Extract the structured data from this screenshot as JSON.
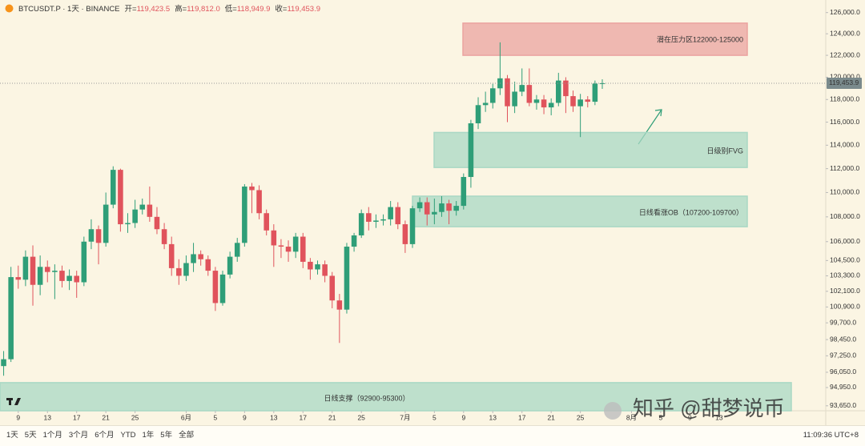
{
  "header": {
    "symbol": "BTCUSDT.P · 1天 · BINANCE",
    "ohlc": [
      {
        "key": "开=",
        "value": "119,423.5"
      },
      {
        "key": "高=",
        "value": "119,812.0"
      },
      {
        "key": "低=",
        "value": "118,949.9"
      },
      {
        "key": "收=",
        "value": "119,453.9"
      }
    ]
  },
  "toolbar": {
    "periods": [
      "1天",
      "5天",
      "1个月",
      "3个月",
      "6个月",
      "YTD",
      "1年",
      "5年",
      "全部"
    ],
    "time": "11:09:36 UTC+8"
  },
  "watermark": "知乎 @甜梦说币",
  "chart_data": {
    "type": "candlestick",
    "categories": [
      null,
      null,
      "9",
      null,
      null,
      null,
      "13",
      null,
      null,
      null,
      "17",
      null,
      null,
      null,
      "21",
      null,
      null,
      null,
      "25",
      null,
      null,
      null,
      null,
      null,
      null,
      "6月",
      null,
      null,
      null,
      "5",
      null,
      null,
      null,
      "9",
      null,
      null,
      null,
      "13",
      null,
      null,
      null,
      "17",
      null,
      null,
      null,
      "21",
      null,
      null,
      null,
      "25",
      null,
      null,
      null,
      null,
      null,
      "7月",
      null,
      null,
      null,
      "5",
      null,
      null,
      null,
      "9",
      null,
      null,
      null,
      "13",
      null,
      null,
      null,
      "17",
      null,
      null,
      null,
      "21",
      null,
      null,
      null,
      "25",
      null,
      null,
      null,
      null,
      null,
      null,
      "8月",
      null,
      null,
      null,
      "5",
      null,
      null,
      null,
      "9",
      null,
      null,
      null,
      "13",
      null,
      null,
      null,
      null,
      null,
      null,
      null,
      null,
      null,
      null,
      null,
      null,
      null,
      null
    ],
    "open": [
      96500,
      97000,
      103200,
      103000,
      104800,
      102600,
      104000,
      103600,
      103700,
      102900,
      103300,
      102800,
      106000,
      107000,
      105900,
      109000,
      111900,
      107400,
      107500,
      108600,
      109000,
      108000,
      107000,
      105800,
      103900,
      103300,
      104300,
      105000,
      104600,
      103700,
      101200,
      103400,
      104800,
      105900,
      110500,
      110200,
      108300,
      106900,
      105700,
      105600,
      105200,
      106400,
      104400,
      103800,
      104200,
      103300,
      101400,
      100700,
      105600,
      106500,
      108300,
      107600,
      107700,
      107800,
      108800,
      107400,
      105800,
      108700,
      109200,
      108200,
      108400,
      109100,
      108500,
      108900,
      111300,
      115900,
      117500,
      117700,
      119000,
      119900,
      117400,
      118700,
      119300,
      117700,
      118000,
      117300,
      117700,
      119700,
      118300,
      117400,
      118000,
      117800,
      119423.5,
      null,
      null,
      null,
      null,
      null,
      null,
      null,
      null,
      null,
      null,
      null,
      null,
      null,
      null,
      null,
      null,
      null,
      null,
      null,
      null,
      null,
      null,
      null,
      null,
      null,
      null,
      null,
      null,
      null,
      null
    ],
    "high": [
      97600,
      104000,
      104100,
      105300,
      105700,
      104900,
      104500,
      104200,
      104100,
      103800,
      103700,
      106400,
      107800,
      107300,
      110000,
      112200,
      112000,
      108300,
      109400,
      109500,
      110500,
      108800,
      107500,
      106400,
      104600,
      104900,
      105900,
      105300,
      104900,
      104000,
      103700,
      105200,
      106300,
      110700,
      110800,
      110600,
      108600,
      107400,
      106200,
      106100,
      106700,
      106700,
      104700,
      104500,
      104500,
      103600,
      101900,
      105900,
      106700,
      108600,
      108800,
      108200,
      108200,
      109300,
      109200,
      107700,
      108900,
      109600,
      109600,
      109500,
      109700,
      109400,
      109300,
      111600,
      116200,
      118200,
      118700,
      119400,
      123200,
      120200,
      119600,
      120800,
      120800,
      118400,
      118400,
      118100,
      120400,
      120000,
      118800,
      118500,
      118300,
      119700,
      119812,
      null,
      null,
      null,
      null,
      null,
      null,
      null,
      null,
      null,
      null,
      null,
      null,
      null,
      null,
      null,
      null,
      null,
      null,
      null,
      null,
      null,
      null,
      null,
      null,
      null,
      null,
      null,
      null,
      null,
      null
    ],
    "low": [
      95800,
      96800,
      102300,
      102500,
      101000,
      101800,
      102800,
      101500,
      102400,
      102200,
      101600,
      102500,
      105400,
      104200,
      105600,
      108700,
      106800,
      106700,
      107100,
      108200,
      107600,
      106600,
      105400,
      103300,
      102600,
      102900,
      103600,
      104100,
      103300,
      100600,
      101000,
      103100,
      104400,
      105600,
      108300,
      107800,
      106500,
      104000,
      104700,
      104400,
      104700,
      103900,
      103000,
      103400,
      102800,
      100800,
      98200,
      100400,
      105200,
      106300,
      106900,
      107100,
      107300,
      107300,
      107000,
      105100,
      105500,
      108400,
      107300,
      107400,
      108000,
      107400,
      108100,
      108600,
      110400,
      115400,
      116900,
      117200,
      118400,
      116000,
      116800,
      118300,
      117400,
      117100,
      116700,
      116600,
      117400,
      116800,
      116900,
      114700,
      117300,
      117500,
      118949.9,
      null,
      null,
      null,
      null,
      null,
      null,
      null,
      null,
      null,
      null,
      null,
      null,
      null,
      null,
      null,
      null,
      null,
      null,
      null,
      null,
      null,
      null,
      null,
      null,
      null,
      null,
      null,
      null,
      null,
      null
    ],
    "close": [
      97000,
      103200,
      103000,
      104800,
      102600,
      104000,
      103600,
      103700,
      102900,
      103300,
      102800,
      106000,
      107000,
      105900,
      109000,
      111900,
      107400,
      107500,
      108600,
      109000,
      108000,
      107000,
      105800,
      103900,
      103300,
      104300,
      105000,
      104600,
      103700,
      101200,
      103400,
      104800,
      105900,
      110500,
      110200,
      108300,
      106900,
      105700,
      105600,
      105200,
      106400,
      104400,
      103800,
      104200,
      103300,
      101400,
      100700,
      105600,
      106500,
      108300,
      107600,
      107700,
      107800,
      108800,
      107400,
      105800,
      108700,
      109200,
      108200,
      108400,
      109100,
      108500,
      108900,
      111300,
      115900,
      117500,
      117700,
      119000,
      119900,
      117400,
      118700,
      119300,
      117700,
      118000,
      117300,
      117700,
      119700,
      118300,
      117400,
      118000,
      117800,
      119423.5,
      119453.9,
      null,
      null,
      null,
      null,
      null,
      null,
      null,
      null,
      null,
      null,
      null,
      null,
      null,
      null,
      null,
      null,
      null,
      null,
      null,
      null,
      null,
      null,
      null,
      null,
      null,
      null,
      null,
      null,
      null,
      null
    ],
    "up_color": "#2f9e78",
    "down_color": "#e0535c",
    "ylim": [
      93300,
      127200
    ],
    "log": true,
    "yticks": [
      {
        "value": 126000,
        "label": "126,000.0"
      },
      {
        "value": 124000,
        "label": "124,000.0"
      },
      {
        "value": 122000,
        "label": "122,000.0"
      },
      {
        "value": 120000,
        "label": "120,000.0"
      },
      {
        "value": 118000,
        "label": "118,000.0"
      },
      {
        "value": 116000,
        "label": "116,000.0"
      },
      {
        "value": 114000,
        "label": "114,000.0"
      },
      {
        "value": 112000,
        "label": "112,000.0"
      },
      {
        "value": 110000,
        "label": "110,000.0"
      },
      {
        "value": 108000,
        "label": "108,000.0"
      },
      {
        "value": 106000,
        "label": "106,000.0"
      },
      {
        "value": 104500,
        "label": "104,500.0"
      },
      {
        "value": 103300,
        "label": "103,300.0"
      },
      {
        "value": 102100,
        "label": "102,100.0"
      },
      {
        "value": 100900,
        "label": "100,900.0"
      },
      {
        "value": 99700,
        "label": "99,700.0"
      },
      {
        "value": 98450,
        "label": "98,450.0"
      },
      {
        "value": 97250,
        "label": "97,250.0"
      },
      {
        "value": 96050,
        "label": "96,050.0"
      },
      {
        "value": 94950,
        "label": "94,950.0"
      },
      {
        "value": 93650,
        "label": "93,650.0"
      }
    ],
    "last_price_label": "119,453.9",
    "zones": [
      {
        "label": "潜在压力区122000-125000",
        "low": 122000,
        "high": 125000,
        "color": "#eba3a0"
      },
      {
        "label": "日级别FVG",
        "low": 112100,
        "high": 115100,
        "color": "#a9d8c4"
      },
      {
        "label": "日线看涨OB（107200-109700）",
        "low": 107200,
        "high": 109700,
        "color": "#a9d8c4"
      },
      {
        "label": "日线支撑（92900-95300）",
        "low": 92900,
        "high": 95300,
        "color": "#a9d8c4"
      }
    ]
  }
}
